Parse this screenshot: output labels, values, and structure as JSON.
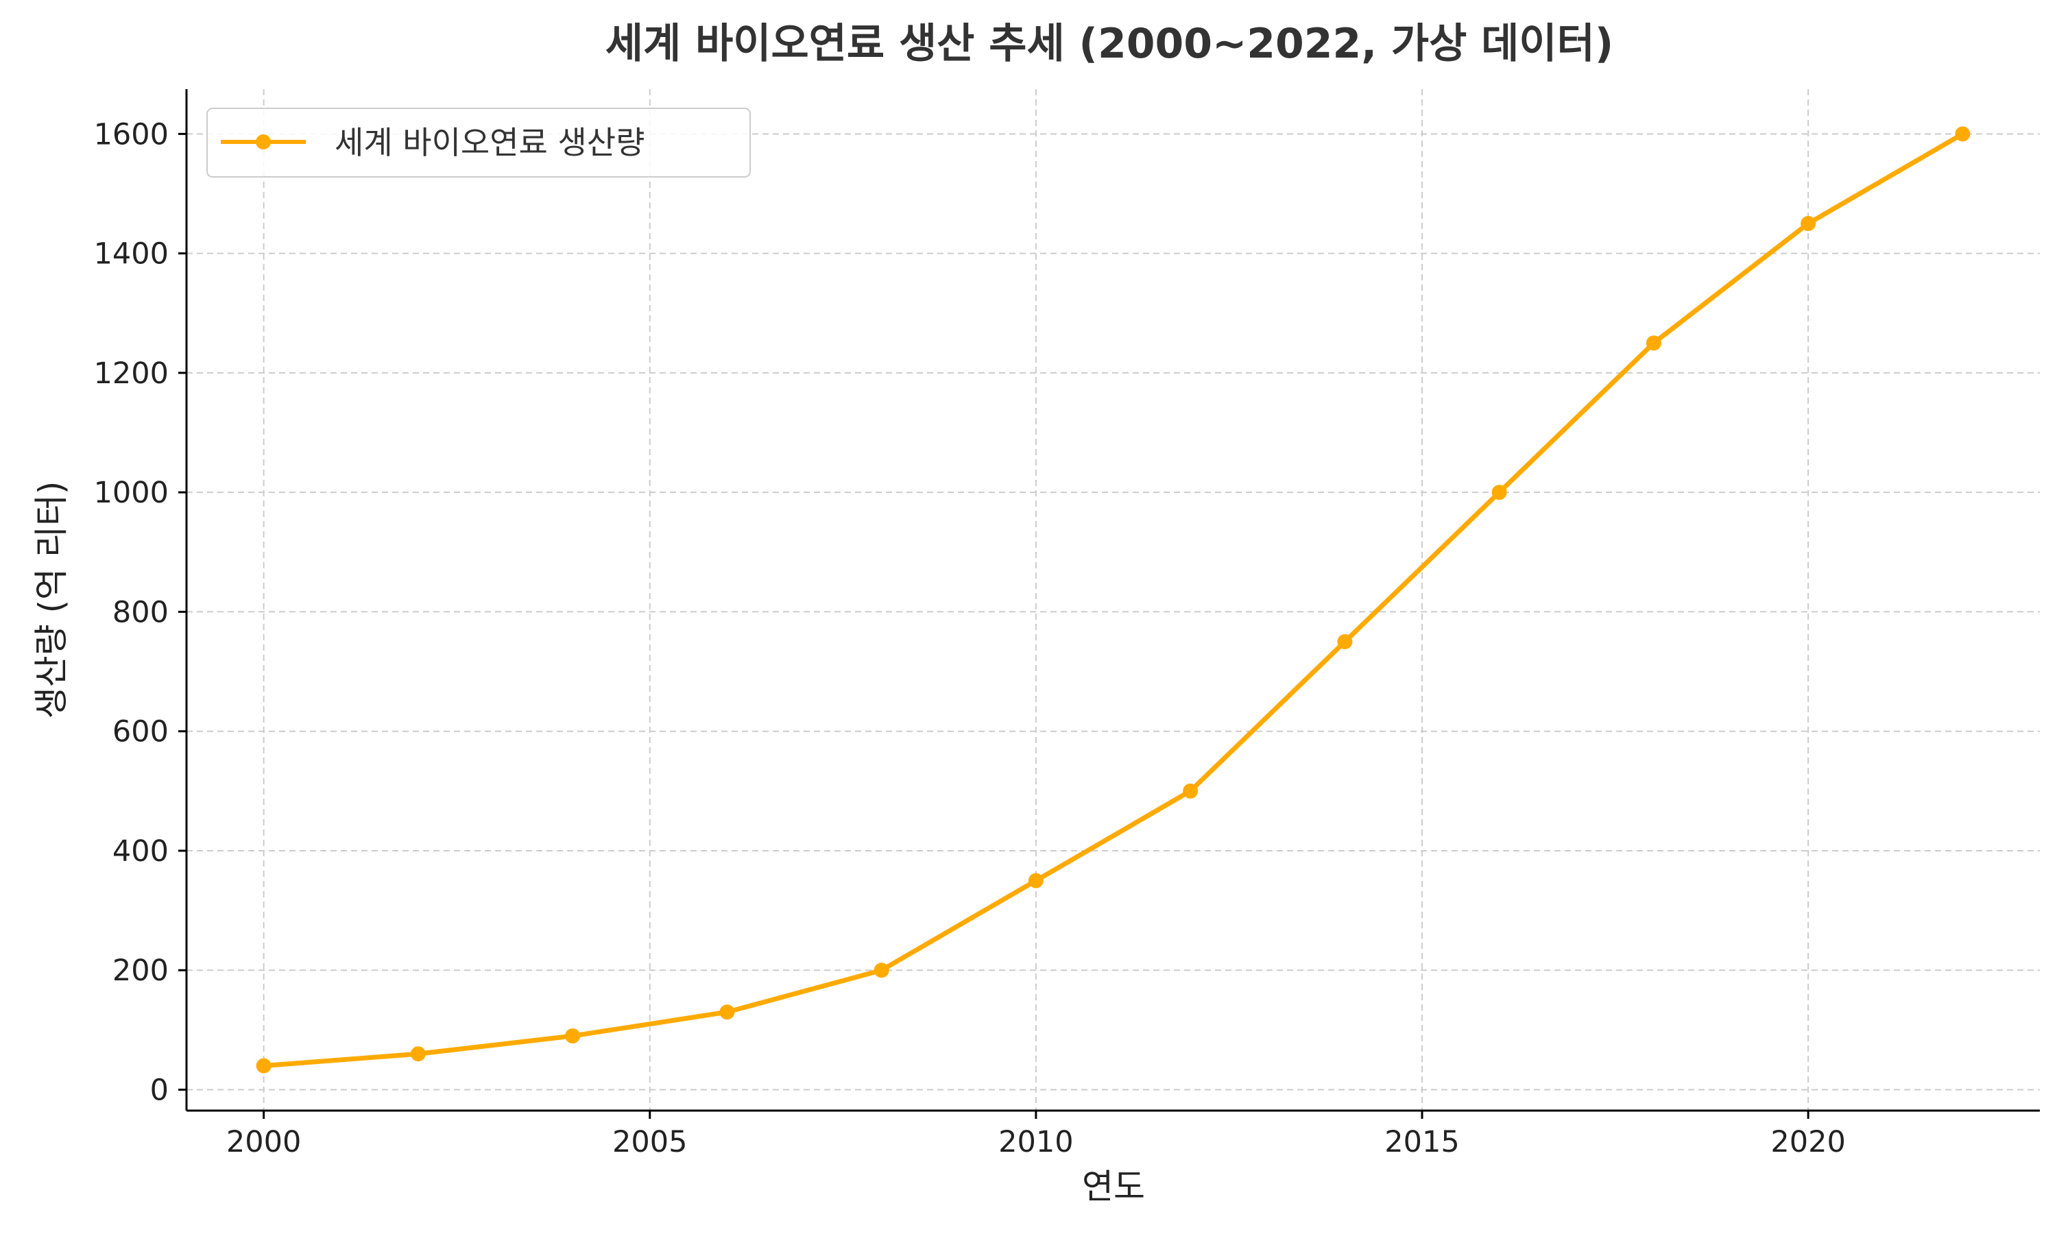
{
  "chart_data": {
    "type": "line",
    "title": "세계 바이오연료 생산 추세 (2000~2022, 가상 데이터)",
    "xlabel": "연도",
    "ylabel": "생산량 (억 리터)",
    "x": [
      2000,
      2002,
      2004,
      2006,
      2008,
      2010,
      2012,
      2014,
      2016,
      2018,
      2020,
      2022
    ],
    "series": [
      {
        "name": "세계 바이오연료 생산량",
        "values": [
          40,
          60,
          90,
          130,
          200,
          350,
          500,
          750,
          1000,
          1250,
          1450,
          1600
        ],
        "color": "#FFAA00",
        "marker": "circle"
      }
    ],
    "xlim": [
      1999,
      2023
    ],
    "ylim": [
      -35,
      1675
    ],
    "xticks": [
      2000,
      2005,
      2010,
      2015,
      2020
    ],
    "yticks": [
      0,
      200,
      400,
      600,
      800,
      1000,
      1200,
      1400,
      1600
    ],
    "grid": true,
    "grid_style": "dashed",
    "legend_position": "top-left"
  }
}
